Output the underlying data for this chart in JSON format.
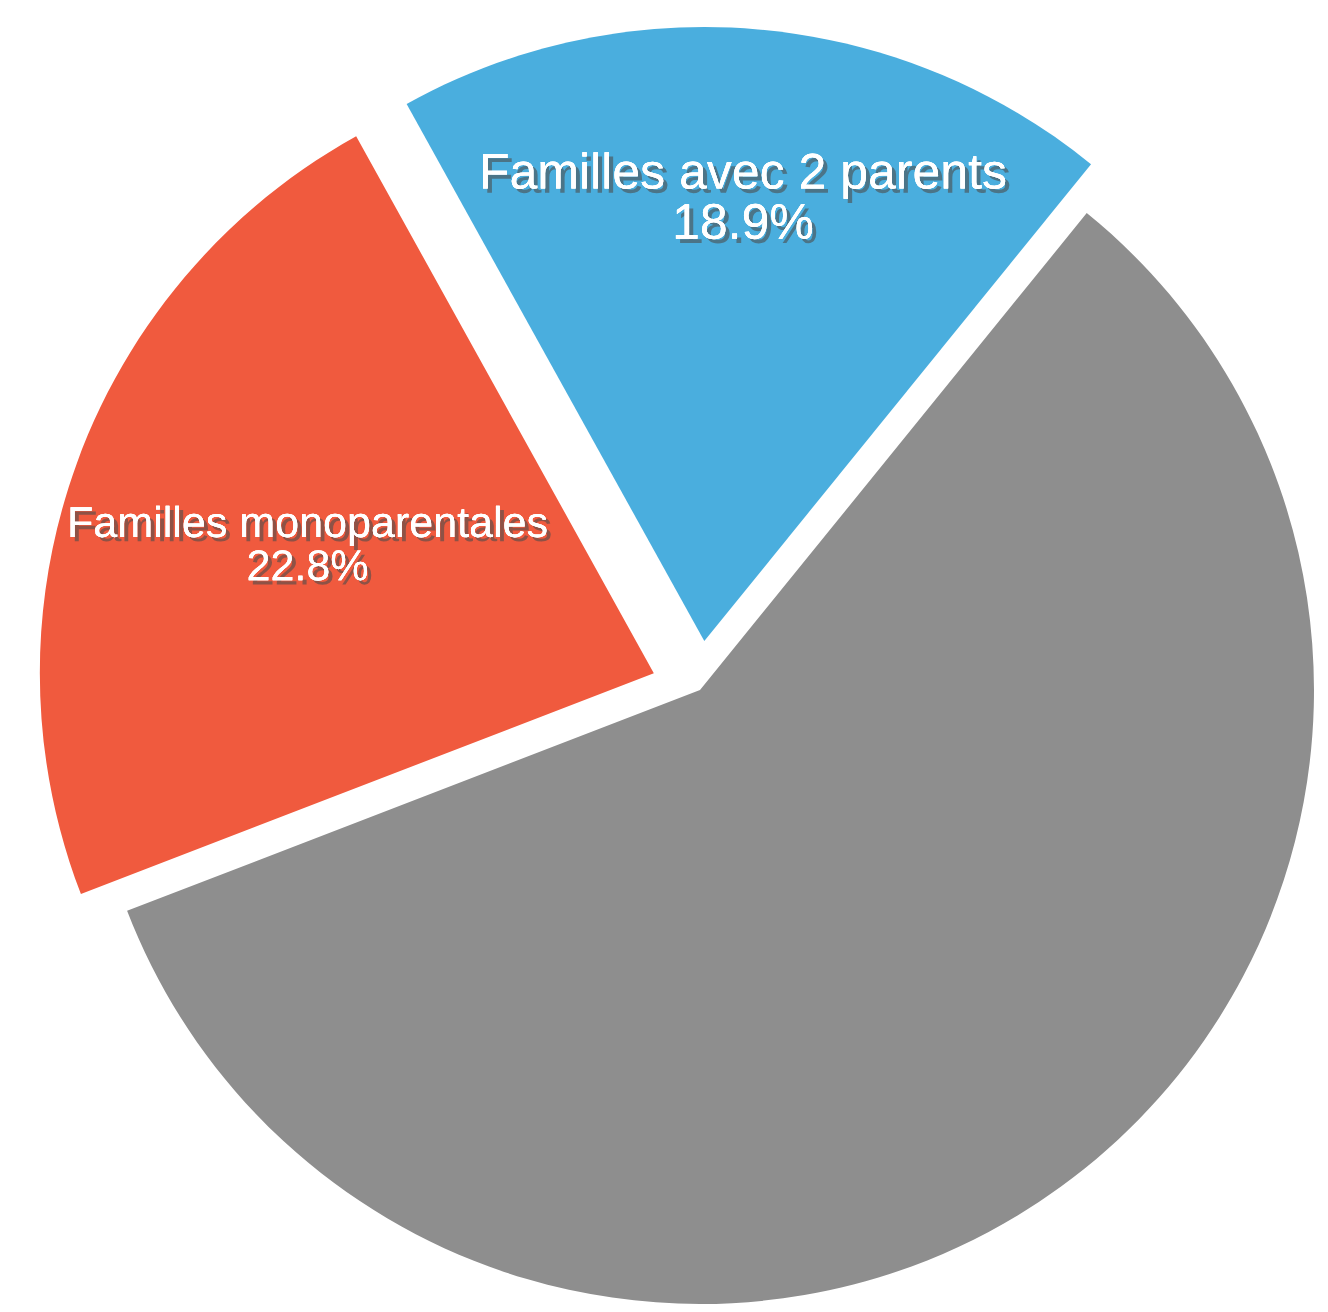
{
  "chart_data": {
    "type": "pie",
    "categories": [
      "Familles avec 2 parents",
      null,
      "Familles monoparentales"
    ],
    "values": [
      18.9,
      58.3,
      22.8
    ],
    "colors": [
      "#4aaede",
      "#8e8e8e",
      "#f05a3e"
    ],
    "value_labels": [
      "18.9%",
      null,
      "22.8%"
    ]
  }
}
